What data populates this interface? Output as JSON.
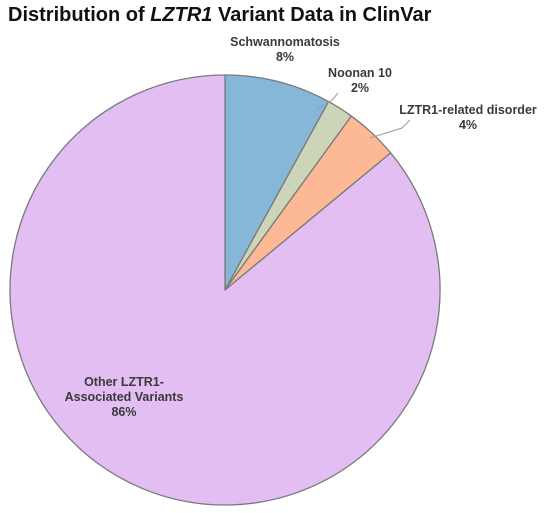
{
  "chart_data": {
    "type": "pie",
    "title": {
      "prefix": "Distribution of ",
      "italic": "LZTR1",
      "suffix": " Variant Data in ClinVar"
    },
    "start_angle_deg": 0,
    "direction": "clockwise",
    "slices": [
      {
        "label": [
          "Schwannomatosis"
        ],
        "value_label": "8%",
        "value": 8,
        "color": "#86b6d8"
      },
      {
        "label": [
          "Noonan 10"
        ],
        "value_label": "2%",
        "value": 2,
        "color": "#cdd5b9"
      },
      {
        "label": [
          "LZTR1-related disorder"
        ],
        "value_label": "4%",
        "value": 4,
        "color": "#fdb896"
      },
      {
        "label": [
          "Other LZTR1-",
          "Associated Variants"
        ],
        "value_label": "86%",
        "value": 86,
        "color": "#e2bef2"
      }
    ],
    "stroke_color": "#7a7a7a",
    "leader_line_color": "#9a9a9a"
  }
}
